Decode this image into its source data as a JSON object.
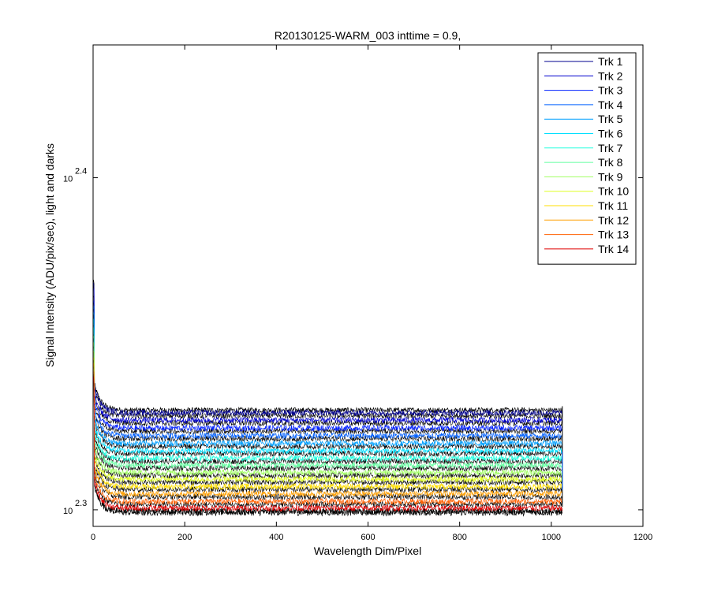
{
  "chart_data": {
    "type": "line",
    "title": "R20130125-WARM_003 inttime = 0.9,",
    "xlabel": "Wavelength Dim/Pixel",
    "ylabel": "Signal Intensity (ADU/pix/sec), light and darks",
    "xlim": [
      0,
      1200
    ],
    "ylim": [
      2.295,
      2.44
    ],
    "yscale": "log10",
    "x_ticks": [
      "0",
      "200",
      "400",
      "600",
      "800",
      "1000",
      "1200"
    ],
    "x_tick_values": [
      0,
      200,
      400,
      600,
      800,
      1000,
      1200
    ],
    "y_ticks": [
      {
        "base": "10",
        "exp": "2.3",
        "value": 2.3
      },
      {
        "base": "10",
        "exp": "2.4",
        "value": 2.4
      }
    ],
    "x_range": [
      1,
      1024
    ],
    "grid": false,
    "legend_position": "top-right",
    "dark_trace_color": "#000000",
    "series": [
      {
        "name": "Trk 1",
        "color": "#00008f",
        "level": 2.3292
      },
      {
        "name": "Trk 2",
        "color": "#0000cf",
        "level": 2.327
      },
      {
        "name": "Trk 3",
        "color": "#0020ff",
        "level": 2.3246
      },
      {
        "name": "Trk 4",
        "color": "#0060ff",
        "level": 2.3223
      },
      {
        "name": "Trk 5",
        "color": "#00a0ff",
        "level": 2.32
      },
      {
        "name": "Trk 6",
        "color": "#00dfff",
        "level": 2.3178
      },
      {
        "name": "Trk 7",
        "color": "#20ffdf",
        "level": 2.3155
      },
      {
        "name": "Trk 8",
        "color": "#60ff9f",
        "level": 2.3134
      },
      {
        "name": "Trk 9",
        "color": "#9fff60",
        "level": 2.3112
      },
      {
        "name": "Trk 10",
        "color": "#dfff20",
        "level": 2.3092
      },
      {
        "name": "Trk 11",
        "color": "#ffdf00",
        "level": 2.307
      },
      {
        "name": "Trk 12",
        "color": "#ff9f00",
        "level": 2.3048
      },
      {
        "name": "Trk 13",
        "color": "#ff6000",
        "level": 2.3025
      },
      {
        "name": "Trk 14",
        "color": "#df0000",
        "level": 2.3005
      }
    ]
  }
}
